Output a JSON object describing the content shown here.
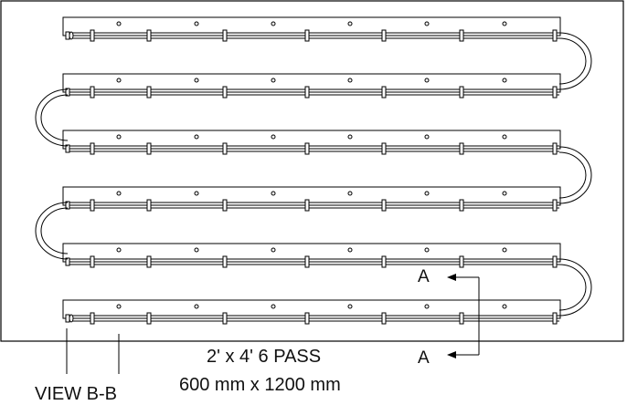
{
  "labels": {
    "section_marker_top": "A",
    "section_marker_bottom": "A",
    "pass_title": "2' x 4' 6 PASS",
    "dimensions": "600 mm x 1200 mm",
    "view_label": "VIEW B-B"
  },
  "diagram": {
    "pass_count": 6,
    "holes_per_pass": 6,
    "clamps_per_pass": 8,
    "line_color": "#000000",
    "background_color": "#ffffff"
  }
}
